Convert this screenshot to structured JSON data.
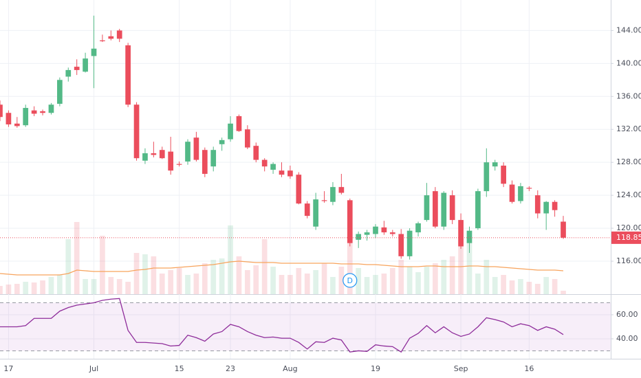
{
  "chart_data": {
    "type": "candlestick",
    "categories": [
      null,
      "17",
      null,
      null,
      null,
      null,
      null,
      null,
      null,
      null,
      null,
      "Jul",
      null,
      null,
      null,
      null,
      null,
      null,
      null,
      null,
      null,
      "15",
      null,
      null,
      null,
      null,
      null,
      "23",
      null,
      null,
      null,
      null,
      null,
      null,
      "Aug",
      null,
      null,
      null,
      null,
      null,
      null,
      null,
      null,
      null,
      "19",
      null,
      null,
      null,
      null,
      null,
      null,
      null,
      null,
      null,
      "Sep",
      null,
      null,
      null,
      null,
      null,
      null,
      null,
      "16",
      null,
      null,
      null,
      null
    ],
    "open": [
      135,
      134,
      132.7,
      132.5,
      134.3,
      134.2,
      134,
      135.1,
      138.4,
      139.6,
      139,
      140.9,
      142.8,
      143.3,
      144,
      142.2,
      135,
      128.2,
      129.1,
      129.5,
      129.3,
      127.8,
      128.1,
      131,
      129.5,
      127.5,
      130.2,
      130.8,
      133.6,
      132,
      130,
      128.3,
      127.1,
      127,
      127,
      126.5,
      123,
      120.2,
      123.4,
      123.2,
      125,
      123.4,
      118.6,
      119.2,
      119.3,
      120.1,
      119.5,
      119.3,
      116.6,
      119.5,
      121,
      124.5,
      120.2,
      124,
      121,
      118.2,
      120,
      124.5,
      127.5,
      127.6,
      125.3,
      123.3,
      124.9,
      124,
      121.8,
      123.2,
      120.8
    ],
    "high": [
      135.5,
      134.3,
      133.5,
      135,
      134.8,
      134.4,
      135.2,
      138.3,
      139.5,
      140.5,
      141.3,
      145.8,
      143.5,
      144,
      144.2,
      142.5,
      135.3,
      129.7,
      130.5,
      129.9,
      131.1,
      128.1,
      130.8,
      131.7,
      129.8,
      129.9,
      131,
      133.6,
      133.8,
      132.5,
      130.4,
      128.5,
      128,
      128,
      127.6,
      126.8,
      123.3,
      124.3,
      124.5,
      125.6,
      126.6,
      123.6,
      119.6,
      119.8,
      120.5,
      120.9,
      119.8,
      119.9,
      120,
      120.8,
      125.5,
      125,
      124.5,
      124.6,
      121.8,
      120.2,
      124.8,
      129.7,
      128.3,
      128,
      125.8,
      125.5,
      125.1,
      124.6,
      123.3,
      123.4,
      121.5
    ],
    "low": [
      133,
      132.3,
      132.2,
      132.3,
      133.6,
      133.7,
      133.8,
      134.8,
      137.8,
      138.6,
      138.9,
      137,
      142.6,
      142.8,
      142.6,
      134.7,
      128.2,
      127.8,
      128.6,
      128.4,
      126.5,
      127.5,
      127.7,
      128.1,
      126.2,
      126.9,
      129.4,
      130.5,
      131.7,
      129.6,
      128,
      126.9,
      126.6,
      126.2,
      126,
      122.9,
      121.2,
      119.8,
      123.1,
      122.8,
      124.1,
      117.8,
      117.6,
      118.5,
      118.8,
      119.2,
      119,
      116.3,
      116.2,
      119,
      120.8,
      120,
      119.8,
      120.5,
      117.5,
      117,
      119.8,
      123.8,
      127,
      125,
      123,
      123,
      124.5,
      121.2,
      119.8,
      121.4,
      118.7
    ],
    "close": [
      133.5,
      132.6,
      132.4,
      134.6,
      133.9,
      134,
      135,
      138,
      139.2,
      139.2,
      140.6,
      141.8,
      142.7,
      143,
      143,
      135,
      128.5,
      129.1,
      128.9,
      128.5,
      127,
      127.7,
      130.5,
      128.3,
      126.6,
      129.5,
      130.7,
      132.7,
      131.8,
      129.8,
      128.3,
      127.5,
      127.8,
      126.5,
      126.3,
      123,
      121.5,
      123.5,
      123.3,
      125,
      124.3,
      118.2,
      119.3,
      119.5,
      120.2,
      119.5,
      119.3,
      116.6,
      119.7,
      120.6,
      124,
      120.2,
      124.3,
      121,
      117.8,
      119.7,
      124.5,
      128,
      128,
      125.4,
      123.2,
      125.1,
      124.8,
      121.8,
      123.2,
      122.2,
      118.85
    ],
    "volume": [
      12,
      14,
      15,
      18,
      17,
      20,
      25,
      28,
      80,
      105,
      22,
      22,
      85,
      25,
      22,
      18,
      60,
      58,
      55,
      30,
      35,
      38,
      28,
      30,
      45,
      50,
      52,
      100,
      55,
      35,
      42,
      80,
      40,
      28,
      28,
      38,
      30,
      35,
      45,
      25,
      40,
      90,
      38,
      25,
      28,
      30,
      38,
      50,
      40,
      32,
      40,
      45,
      50,
      55,
      80,
      75,
      30,
      50,
      25,
      28,
      20,
      22,
      18,
      15,
      25,
      22,
      5
    ],
    "volume_ma": [
      30,
      29,
      28,
      28,
      28,
      28,
      28,
      28,
      30,
      35,
      34,
      33,
      33,
      33,
      33,
      33,
      35,
      36,
      38,
      38,
      38,
      39,
      40,
      41,
      42,
      43,
      45,
      47,
      48,
      47,
      46,
      46,
      46,
      45,
      45,
      45,
      45,
      45,
      45,
      45,
      44,
      44,
      44,
      43,
      43,
      42,
      41,
      40,
      40,
      40,
      41,
      41,
      40,
      40,
      40,
      41,
      41,
      40,
      40,
      39,
      38,
      37,
      36,
      35,
      35,
      35,
      34
    ],
    "volume_ylim": [
      0,
      110
    ],
    "up_color": "#53b987",
    "down_color": "#eb4d5c",
    "volume_ma_color": "#f7a35c",
    "ylim": [
      112,
      147.7
    ],
    "yticks": [
      {
        "value": 116,
        "label": "116.00"
      },
      {
        "value": 120,
        "label": "120.00"
      },
      {
        "value": 124,
        "label": "124.00"
      },
      {
        "value": 128,
        "label": "128.00"
      },
      {
        "value": 132,
        "label": "132.00"
      },
      {
        "value": 136,
        "label": "136.00"
      },
      {
        "value": 140,
        "label": "140.00"
      },
      {
        "value": 144,
        "label": "144.00"
      }
    ],
    "last_price": {
      "value": 118.85,
      "label": "118.85"
    },
    "event": {
      "label": "D",
      "index": 41
    },
    "grid": true,
    "rsi": {
      "values": [
        50,
        50,
        50,
        51,
        57,
        57,
        57,
        63,
        66,
        68,
        69,
        70,
        72,
        73,
        73.5,
        47,
        37,
        37,
        36.5,
        36,
        34,
        34.5,
        43,
        41,
        38,
        44,
        46,
        52,
        50,
        46,
        43,
        41,
        41.5,
        40.5,
        40.5,
        37,
        31.5,
        37.5,
        37,
        40.5,
        39,
        29,
        30,
        29.5,
        35,
        34,
        33.5,
        29,
        40.5,
        44.5,
        51,
        45,
        50,
        45,
        42,
        44,
        50,
        57.5,
        56,
        54,
        50,
        52.5,
        51,
        47,
        50,
        48,
        43.5
      ],
      "color": "#8e2c9a",
      "band_color": "#9c27b0",
      "ylim": [
        23.4,
        76
      ],
      "yticks": [
        {
          "value": 40,
          "label": "40.00"
        },
        {
          "value": 60,
          "label": "60.00"
        }
      ],
      "bands": [
        30,
        70
      ]
    }
  }
}
